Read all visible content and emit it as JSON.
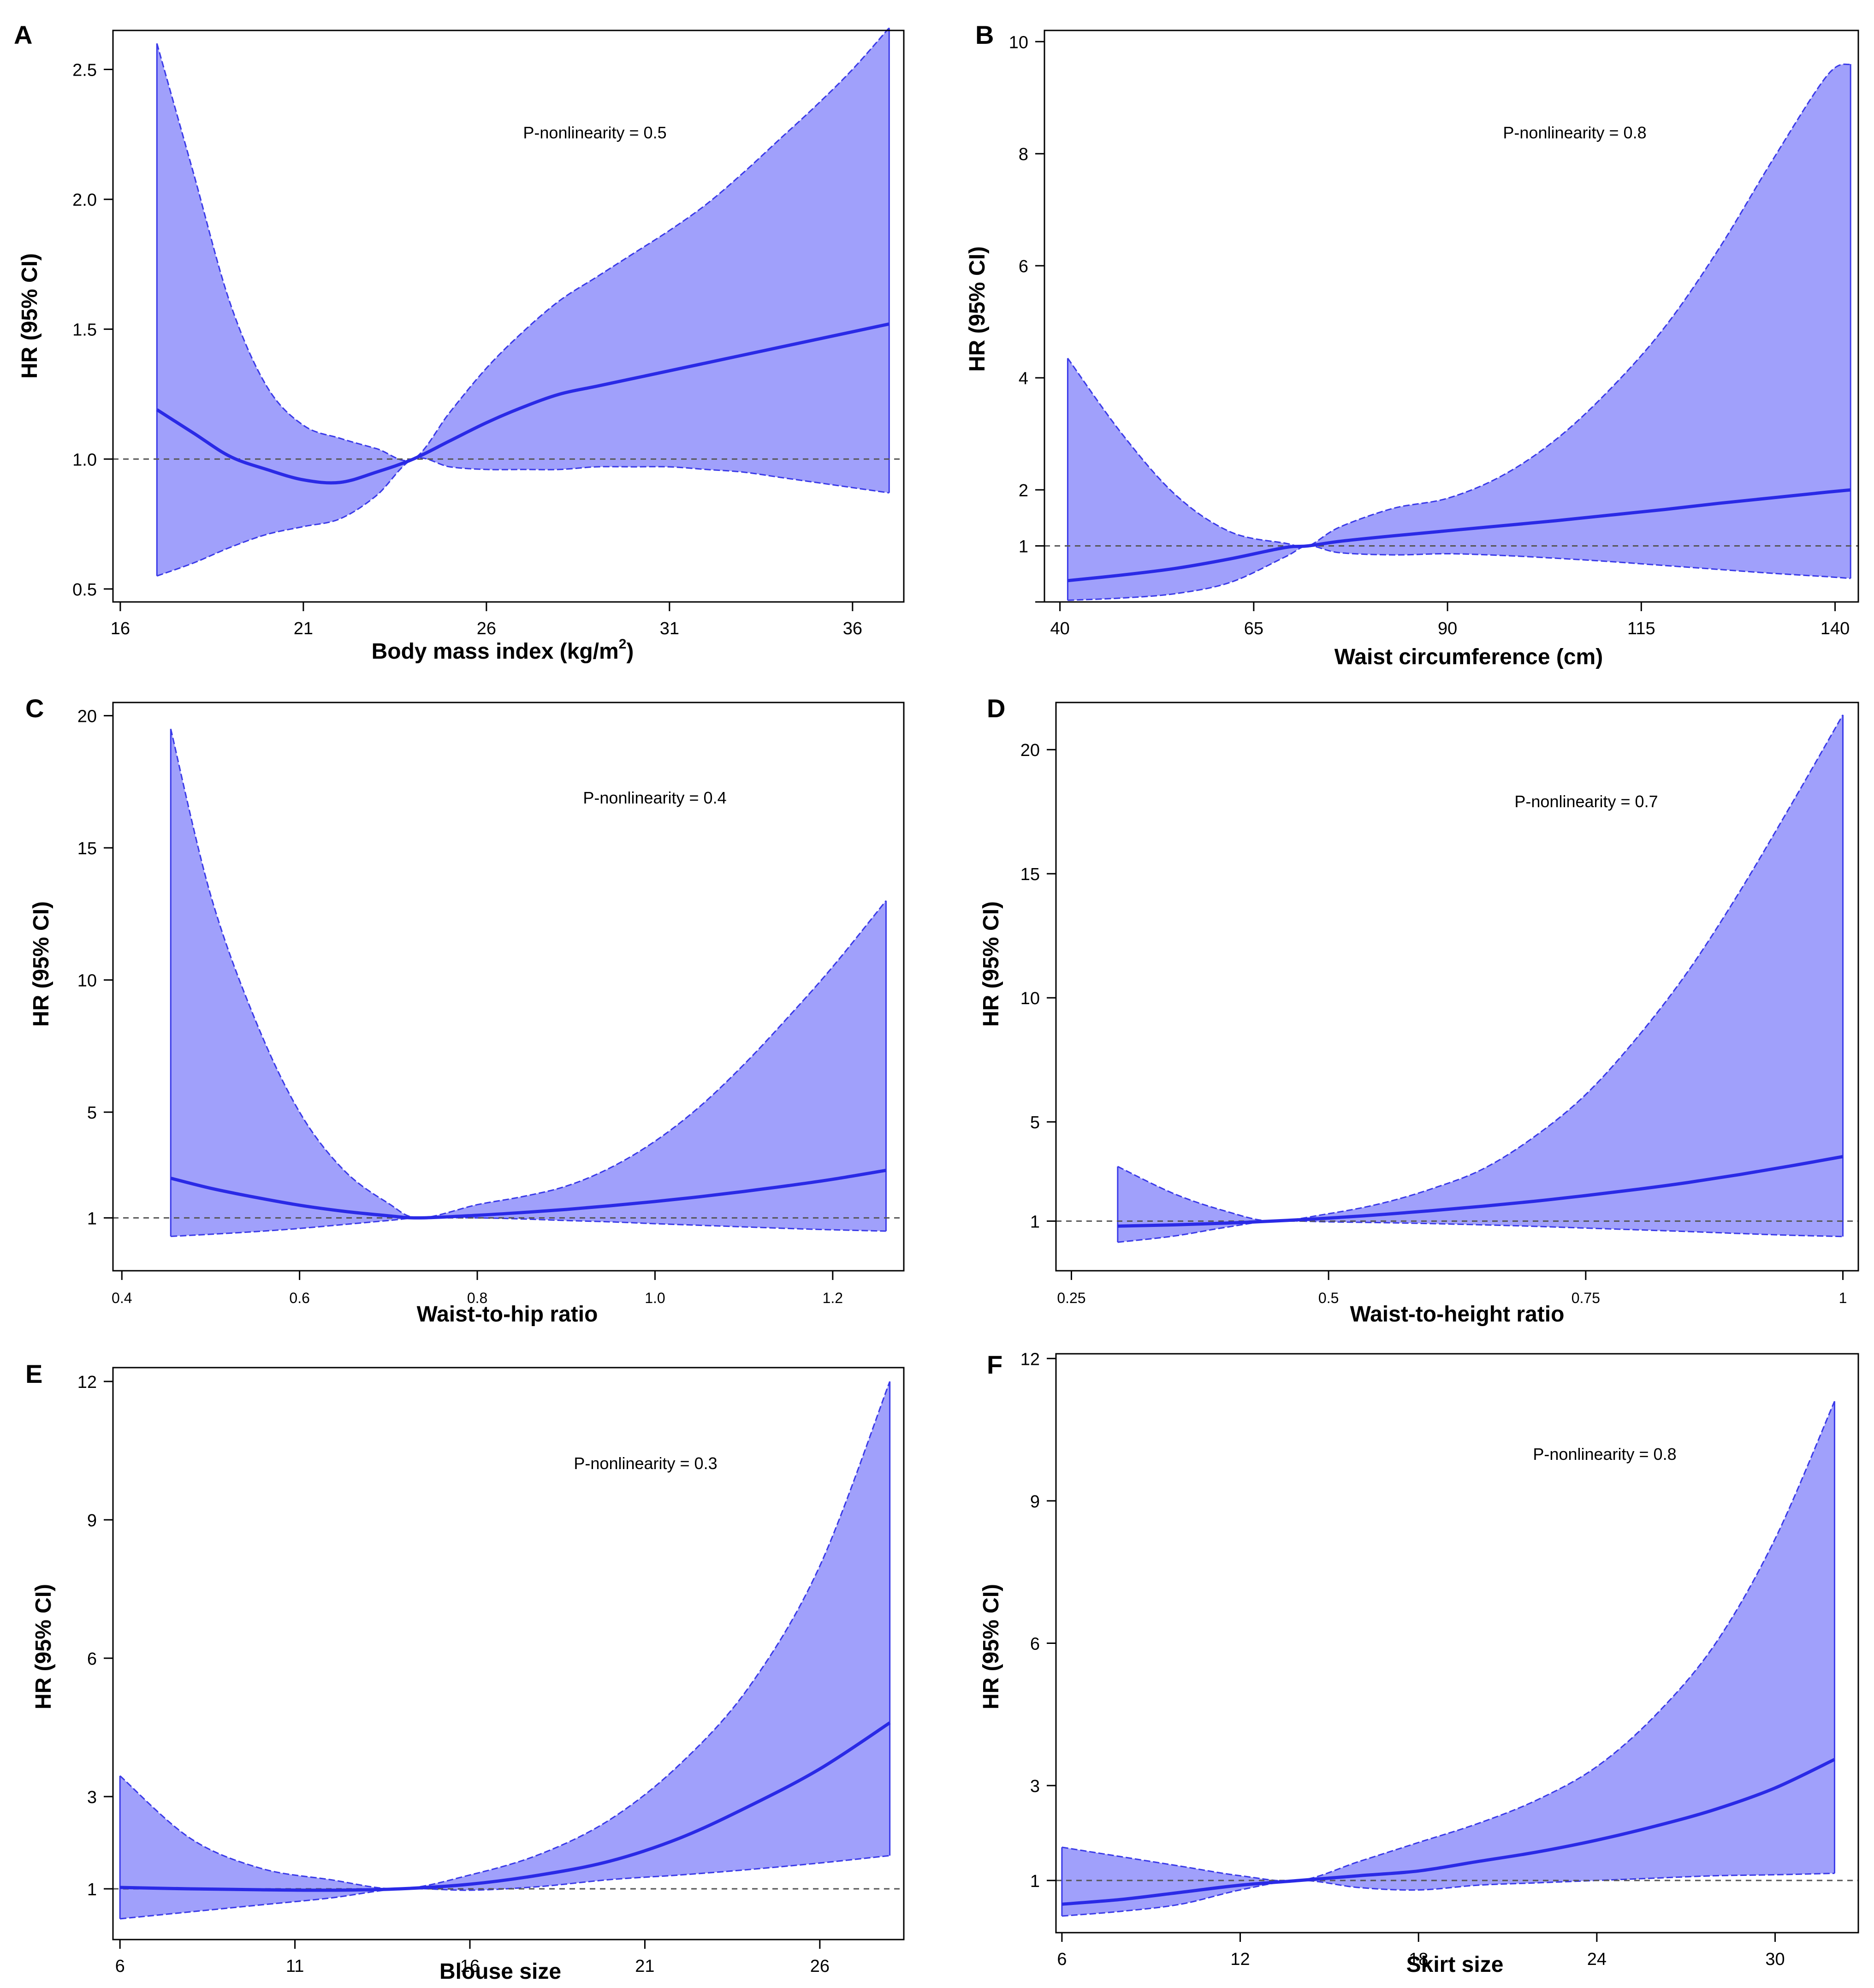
{
  "chart_data": [
    {
      "panel": "A",
      "type": "line",
      "xlabel": "Body mass index (kg/m",
      "xlabel_sup": "2",
      "xlabel_end": ")",
      "ylabel": "HR (95% CI)",
      "annotation": "P-nonlinearity = 0.5",
      "xlim": [
        15.8,
        37.4
      ],
      "ylim": [
        0.45,
        2.65
      ],
      "xticks": [
        16,
        21,
        26,
        31,
        36
      ],
      "xtick_labels": [
        "16",
        "21",
        "26",
        "31",
        "36"
      ],
      "yticks": [
        0.5,
        1.0,
        1.5,
        2.0,
        2.5
      ],
      "ytick_labels": [
        "0.5",
        "1.0",
        "1.5",
        "2.0",
        "2.5"
      ],
      "reference": 1.0,
      "x": [
        17,
        18,
        19,
        20,
        21,
        22,
        23,
        24,
        25,
        26,
        27,
        28,
        29,
        30,
        31,
        32,
        33,
        34,
        35,
        36,
        37
      ],
      "hr": [
        1.19,
        1.1,
        1.01,
        0.96,
        0.92,
        0.91,
        0.95,
        1.0,
        1.07,
        1.14,
        1.2,
        1.25,
        1.28,
        1.31,
        1.34,
        1.37,
        1.4,
        1.43,
        1.46,
        1.49,
        1.52
      ],
      "lower": [
        0.55,
        0.6,
        0.66,
        0.71,
        0.74,
        0.77,
        0.86,
        1.0,
        0.97,
        0.96,
        0.96,
        0.96,
        0.97,
        0.97,
        0.97,
        0.96,
        0.95,
        0.93,
        0.91,
        0.89,
        0.87
      ],
      "upper": [
        2.6,
        2.1,
        1.6,
        1.28,
        1.13,
        1.08,
        1.04,
        1.0,
        1.18,
        1.35,
        1.49,
        1.61,
        1.7,
        1.79,
        1.88,
        1.98,
        2.1,
        2.23,
        2.36,
        2.5,
        2.66
      ]
    },
    {
      "panel": "B",
      "type": "line",
      "xlabel": "Waist circumference (cm)",
      "ylabel": "HR (95% CI)",
      "annotation": "P-nonlinearity = 0.8",
      "xlim": [
        38,
        143
      ],
      "ylim": [
        0,
        10.2
      ],
      "xticks": [
        40,
        65,
        90,
        115,
        140
      ],
      "xtick_labels": [
        "40",
        "65",
        "90",
        "115",
        "140"
      ],
      "yticks": [
        0,
        1,
        2,
        4,
        6,
        8,
        10
      ],
      "ytick_labels": [
        "",
        "1",
        "2",
        "4",
        "6",
        "8",
        "10"
      ],
      "reference": 1.0,
      "x": [
        41,
        48,
        55,
        62,
        69,
        72,
        76,
        83,
        90,
        97,
        104,
        111,
        118,
        125,
        132,
        139,
        142
      ],
      "hr": [
        0.38,
        0.48,
        0.6,
        0.77,
        0.97,
        1.0,
        1.08,
        1.18,
        1.27,
        1.36,
        1.45,
        1.55,
        1.65,
        1.76,
        1.86,
        1.96,
        2.0
      ],
      "lower": [
        0.03,
        0.07,
        0.15,
        0.35,
        0.8,
        1.0,
        0.88,
        0.84,
        0.86,
        0.83,
        0.78,
        0.72,
        0.65,
        0.58,
        0.51,
        0.45,
        0.42
      ],
      "upper": [
        4.35,
        3.0,
        1.9,
        1.25,
        1.05,
        1.0,
        1.33,
        1.67,
        1.85,
        2.25,
        2.9,
        3.8,
        4.9,
        6.3,
        7.9,
        9.4,
        9.6
      ]
    },
    {
      "panel": "C",
      "type": "line",
      "xlabel": "Waist-to-hip ratio",
      "ylabel": "HR (95% CI)",
      "annotation": "P-nonlinearity = 0.4",
      "xlim": [
        0.39,
        1.28
      ],
      "ylim": [
        -1,
        20.5
      ],
      "xticks": [
        0.4,
        0.6,
        0.8,
        1.0,
        1.2
      ],
      "xtick_labels": [
        "0.4",
        "0.6",
        "0.8",
        "1.0",
        "1.2"
      ],
      "yticks": [
        1,
        5,
        10,
        15,
        20
      ],
      "ytick_labels": [
        "1",
        "5",
        "10",
        "15",
        "20"
      ],
      "reference": 1.0,
      "x": [
        0.455,
        0.5,
        0.55,
        0.6,
        0.65,
        0.7,
        0.735,
        0.8,
        0.85,
        0.9,
        0.95,
        1.0,
        1.05,
        1.1,
        1.15,
        1.2,
        1.26
      ],
      "hr": [
        2.5,
        2.12,
        1.78,
        1.48,
        1.25,
        1.08,
        1.0,
        1.1,
        1.2,
        1.32,
        1.46,
        1.62,
        1.8,
        2.0,
        2.22,
        2.46,
        2.8
      ],
      "lower": [
        0.3,
        0.38,
        0.48,
        0.6,
        0.75,
        0.9,
        1.0,
        1.0,
        0.96,
        0.9,
        0.85,
        0.78,
        0.72,
        0.66,
        0.6,
        0.55,
        0.5
      ],
      "upper": [
        19.5,
        13.2,
        8.5,
        5.0,
        2.8,
        1.55,
        1.0,
        1.5,
        1.8,
        2.2,
        2.9,
        3.9,
        5.2,
        6.8,
        8.6,
        10.5,
        13.0
      ]
    },
    {
      "panel": "D",
      "type": "line",
      "xlabel": "Waist-to-height ratio",
      "ylabel": "HR (95% CI)",
      "annotation": "P-nonlinearity = 0.7",
      "xlim": [
        0.235,
        1.015
      ],
      "ylim": [
        -1,
        21.9
      ],
      "xticks": [
        0.25,
        0.5,
        0.75,
        1.0
      ],
      "xtick_labels": [
        "0.25",
        "0.5",
        "0.75",
        "1"
      ],
      "yticks": [
        1,
        5,
        10,
        15,
        20
      ],
      "ytick_labels": [
        "1",
        "5",
        "10",
        "15",
        "20"
      ],
      "reference": 1.0,
      "x": [
        0.295,
        0.35,
        0.4,
        0.445,
        0.5,
        0.55,
        0.6,
        0.65,
        0.7,
        0.75,
        0.8,
        0.85,
        0.9,
        0.95,
        1.0
      ],
      "hr": [
        0.8,
        0.85,
        0.92,
        1.0,
        1.12,
        1.26,
        1.42,
        1.6,
        1.8,
        2.03,
        2.28,
        2.56,
        2.88,
        3.23,
        3.6
      ],
      "lower": [
        0.15,
        0.4,
        0.75,
        1.0,
        0.97,
        0.94,
        0.9,
        0.85,
        0.79,
        0.72,
        0.65,
        0.58,
        0.5,
        0.43,
        0.38
      ],
      "upper": [
        3.2,
        2.1,
        1.4,
        1.0,
        1.3,
        1.7,
        2.3,
        3.1,
        4.4,
        6.1,
        8.4,
        11.1,
        14.3,
        17.8,
        21.4
      ]
    },
    {
      "panel": "E",
      "type": "line",
      "xlabel": "Blouse size",
      "ylabel": "HR (95% CI)",
      "annotation": "P-nonlinearity = 0.3",
      "xlim": [
        5.8,
        28.4
      ],
      "ylim": [
        -0.1,
        12.3
      ],
      "xticks": [
        6,
        11,
        16,
        21,
        26
      ],
      "xtick_labels": [
        "6",
        "11",
        "16",
        "21",
        "26"
      ],
      "yticks": [
        1,
        3,
        6,
        9,
        12
      ],
      "ytick_labels": [
        "1",
        "3",
        "6",
        "9",
        "12"
      ],
      "reference": 1.0,
      "x": [
        6,
        8,
        10,
        12,
        14,
        16,
        18,
        20,
        22,
        24,
        26,
        28
      ],
      "hr": [
        1.03,
        1.0,
        0.98,
        0.97,
        1.0,
        1.1,
        1.3,
        1.6,
        2.1,
        2.8,
        3.6,
        4.6
      ],
      "lower": [
        0.35,
        0.5,
        0.65,
        0.8,
        1.0,
        0.97,
        1.05,
        1.2,
        1.3,
        1.42,
        1.56,
        1.72
      ],
      "upper": [
        3.45,
        2.1,
        1.45,
        1.2,
        1.0,
        1.3,
        1.75,
        2.5,
        3.7,
        5.4,
        8.0,
        12.0
      ]
    },
    {
      "panel": "F",
      "type": "line",
      "xlabel": "Skirt size",
      "ylabel": "HR (95% CI)",
      "annotation": "P-nonlinearity = 0.8",
      "xlim": [
        5.8,
        32.8
      ],
      "ylim": [
        -0.1,
        12.1
      ],
      "xticks": [
        6,
        12,
        18,
        24,
        30
      ],
      "xtick_labels": [
        "6",
        "12",
        "18",
        "24",
        "30"
      ],
      "yticks": [
        1,
        3,
        6,
        9,
        12
      ],
      "ytick_labels": [
        "1",
        "3",
        "6",
        "9",
        "12"
      ],
      "reference": 1.0,
      "x": [
        6,
        8,
        10,
        12,
        14,
        16,
        18,
        20,
        22,
        24,
        26,
        28,
        30,
        32
      ],
      "hr": [
        0.5,
        0.6,
        0.75,
        0.9,
        1.0,
        1.1,
        1.2,
        1.4,
        1.6,
        1.85,
        2.15,
        2.5,
        2.95,
        3.55
      ],
      "lower": [
        0.25,
        0.35,
        0.5,
        0.8,
        1.0,
        0.85,
        0.8,
        0.9,
        0.95,
        1.0,
        1.05,
        1.1,
        1.12,
        1.15
      ],
      "upper": [
        1.7,
        1.5,
        1.3,
        1.1,
        1.0,
        1.4,
        1.8,
        2.2,
        2.7,
        3.4,
        4.5,
        6.0,
        8.2,
        11.1
      ]
    }
  ]
}
